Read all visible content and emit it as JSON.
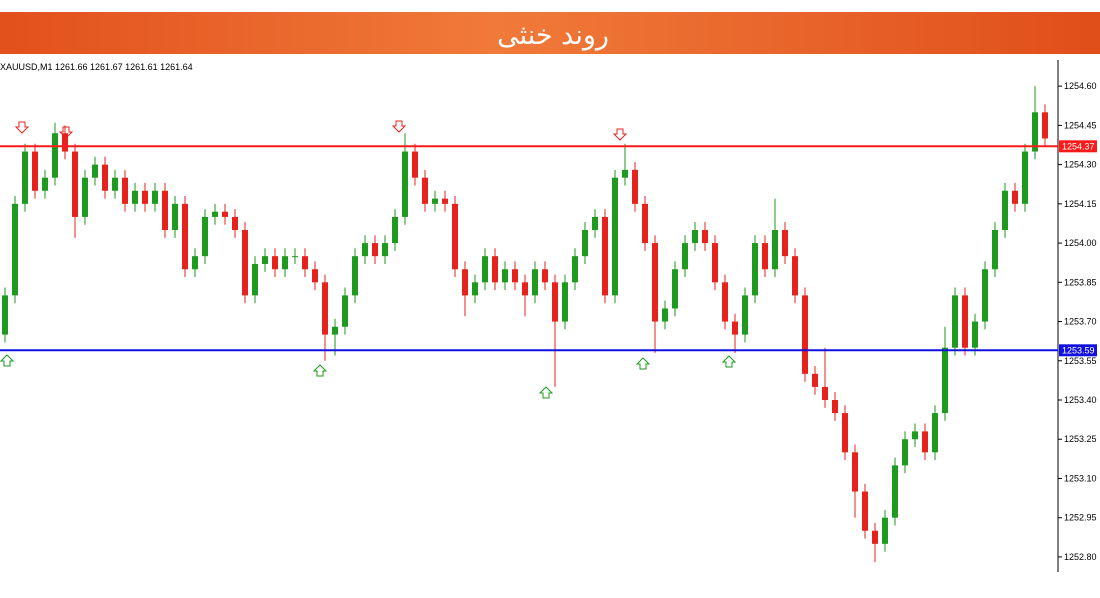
{
  "header": {
    "title": "روند خنثی"
  },
  "chart_data": {
    "type": "candlestick",
    "info": "XAUUSD,M1  1261.66 1261.67 1261.61 1261.64",
    "open": [
      1253.65,
      1253.8,
      1254.15,
      1254.35,
      1254.2,
      1254.25,
      1254.42,
      1254.35,
      1254.1,
      1254.25,
      1254.3,
      1254.2,
      1254.25,
      1254.15,
      1254.2,
      1254.15,
      1254.2,
      1254.05,
      1254.15,
      1253.9,
      1253.95,
      1254.1,
      1254.12,
      1254.1,
      1254.05,
      1253.8,
      1253.92,
      1253.95,
      1253.9,
      1253.95,
      1253.95,
      1253.9,
      1253.85,
      1253.65,
      1253.68,
      1253.8,
      1253.95,
      1254.0,
      1253.95,
      1254.0,
      1254.1,
      1254.35,
      1254.25,
      1254.15,
      1254.17,
      1254.15,
      1253.9,
      1253.8,
      1253.85,
      1253.95,
      1253.85,
      1253.9,
      1253.85,
      1253.8,
      1253.9,
      1253.85,
      1253.7,
      1253.85,
      1253.95,
      1254.05,
      1254.1,
      1253.8,
      1254.25,
      1254.28,
      1254.15,
      1254.0,
      1253.7,
      1253.75,
      1253.9,
      1254.0,
      1254.05,
      1254.0,
      1253.85,
      1253.7,
      1253.65,
      1253.8,
      1254.0,
      1253.9,
      1254.05,
      1253.95,
      1253.8,
      1253.5,
      1253.45,
      1253.4,
      1253.35,
      1253.2,
      1253.05,
      1252.9,
      1252.85,
      1252.95,
      1253.15,
      1253.25,
      1253.28,
      1253.2,
      1253.35,
      1253.6,
      1253.8,
      1253.6,
      1253.7,
      1253.9,
      1254.05,
      1254.2,
      1254.15,
      1254.35,
      1254.5
    ],
    "high": [
      1253.83,
      1254.18,
      1254.38,
      1254.38,
      1254.28,
      1254.46,
      1254.45,
      1254.38,
      1254.28,
      1254.33,
      1254.33,
      1254.28,
      1254.28,
      1254.23,
      1254.23,
      1254.23,
      1254.23,
      1254.18,
      1254.18,
      1253.98,
      1254.13,
      1254.15,
      1254.15,
      1254.13,
      1254.08,
      1253.95,
      1253.98,
      1253.98,
      1253.98,
      1253.98,
      1253.98,
      1253.93,
      1253.88,
      1253.71,
      1253.83,
      1253.98,
      1254.03,
      1254.03,
      1254.03,
      1254.13,
      1254.42,
      1254.38,
      1254.28,
      1254.2,
      1254.2,
      1254.18,
      1253.93,
      1253.88,
      1253.98,
      1253.98,
      1253.93,
      1253.93,
      1253.88,
      1253.93,
      1253.93,
      1253.88,
      1253.88,
      1253.98,
      1254.08,
      1254.13,
      1254.13,
      1254.28,
      1254.38,
      1254.31,
      1254.18,
      1254.03,
      1253.78,
      1253.93,
      1254.03,
      1254.08,
      1254.08,
      1254.03,
      1253.88,
      1253.73,
      1253.83,
      1254.03,
      1254.03,
      1254.17,
      1254.08,
      1253.98,
      1253.83,
      1253.53,
      1253.6,
      1253.43,
      1253.38,
      1253.23,
      1253.08,
      1252.93,
      1252.98,
      1253.18,
      1253.28,
      1253.31,
      1253.31,
      1253.38,
      1253.68,
      1253.83,
      1253.83,
      1253.73,
      1253.93,
      1254.08,
      1254.23,
      1254.23,
      1254.38,
      1254.6,
      1254.53
    ],
    "low": [
      1253.62,
      1253.77,
      1254.12,
      1254.17,
      1254.17,
      1254.22,
      1254.32,
      1254.02,
      1254.07,
      1254.22,
      1254.17,
      1254.17,
      1254.12,
      1254.12,
      1254.12,
      1254.12,
      1254.02,
      1254.02,
      1253.87,
      1253.87,
      1253.92,
      1254.07,
      1254.07,
      1254.02,
      1253.77,
      1253.77,
      1253.89,
      1253.87,
      1253.87,
      1253.92,
      1253.87,
      1253.82,
      1253.55,
      1253.57,
      1253.65,
      1253.77,
      1253.92,
      1253.92,
      1253.92,
      1253.97,
      1254.07,
      1254.22,
      1254.12,
      1254.12,
      1254.12,
      1253.87,
      1253.72,
      1253.77,
      1253.82,
      1253.82,
      1253.82,
      1253.82,
      1253.72,
      1253.77,
      1253.82,
      1253.45,
      1253.67,
      1253.82,
      1253.92,
      1254.02,
      1253.77,
      1253.77,
      1254.22,
      1254.12,
      1253.97,
      1253.58,
      1253.67,
      1253.72,
      1253.87,
      1253.97,
      1253.97,
      1253.82,
      1253.67,
      1253.58,
      1253.62,
      1253.77,
      1253.87,
      1253.87,
      1253.92,
      1253.77,
      1253.47,
      1253.42,
      1253.37,
      1253.32,
      1253.17,
      1252.95,
      1252.87,
      1252.78,
      1252.82,
      1252.92,
      1253.12,
      1253.22,
      1253.17,
      1253.17,
      1253.32,
      1253.57,
      1253.57,
      1253.57,
      1253.67,
      1253.87,
      1254.02,
      1254.12,
      1254.12,
      1254.32,
      1254.37
    ],
    "close": [
      1253.8,
      1254.15,
      1254.35,
      1254.2,
      1254.25,
      1254.42,
      1254.35,
      1254.1,
      1254.25,
      1254.3,
      1254.2,
      1254.25,
      1254.15,
      1254.2,
      1254.15,
      1254.2,
      1254.05,
      1254.15,
      1253.9,
      1253.95,
      1254.1,
      1254.12,
      1254.1,
      1254.05,
      1253.8,
      1253.92,
      1253.95,
      1253.9,
      1253.95,
      1253.95,
      1253.9,
      1253.85,
      1253.65,
      1253.68,
      1253.8,
      1253.95,
      1254.0,
      1253.95,
      1254.0,
      1254.1,
      1254.35,
      1254.25,
      1254.15,
      1254.17,
      1254.15,
      1253.9,
      1253.8,
      1253.85,
      1253.95,
      1253.85,
      1253.9,
      1253.85,
      1253.8,
      1253.9,
      1253.85,
      1253.7,
      1253.85,
      1253.95,
      1254.05,
      1254.1,
      1253.8,
      1254.25,
      1254.28,
      1254.15,
      1254.0,
      1253.7,
      1253.75,
      1253.9,
      1254.0,
      1254.05,
      1254.0,
      1253.85,
      1253.7,
      1253.65,
      1253.8,
      1254.0,
      1253.9,
      1254.05,
      1253.95,
      1253.8,
      1253.5,
      1253.45,
      1253.4,
      1253.35,
      1253.2,
      1253.05,
      1252.9,
      1252.85,
      1252.95,
      1253.15,
      1253.25,
      1253.28,
      1253.2,
      1253.35,
      1253.6,
      1253.8,
      1253.6,
      1253.7,
      1253.9,
      1254.05,
      1254.2,
      1254.15,
      1254.35,
      1254.5,
      1254.4
    ],
    "up_color": "#1e9a1e",
    "down_color": "#e5231c",
    "ylim": [
      1252.75,
      1254.7
    ],
    "yticks": [
      {
        "value": 1252.8,
        "label": "1252.80"
      },
      1252.95,
      {
        "value": 1253.1,
        "label": "1253.10"
      },
      1253.25,
      {
        "value": 1253.4,
        "label": "1253.40"
      },
      1253.55,
      {
        "value": 1253.7,
        "label": "1253.70"
      },
      1253.85,
      {
        "value": 1254.0,
        "label": "1254.00"
      },
      1254.15,
      {
        "value": 1254.3,
        "label": "1254.30"
      },
      1254.45,
      {
        "value": 1254.6,
        "label": "1254.60"
      }
    ],
    "levels": [
      {
        "value": 1254.37,
        "color": "#ff1a1a"
      },
      {
        "value": 1253.59,
        "color": "#1010e0"
      }
    ]
  }
}
